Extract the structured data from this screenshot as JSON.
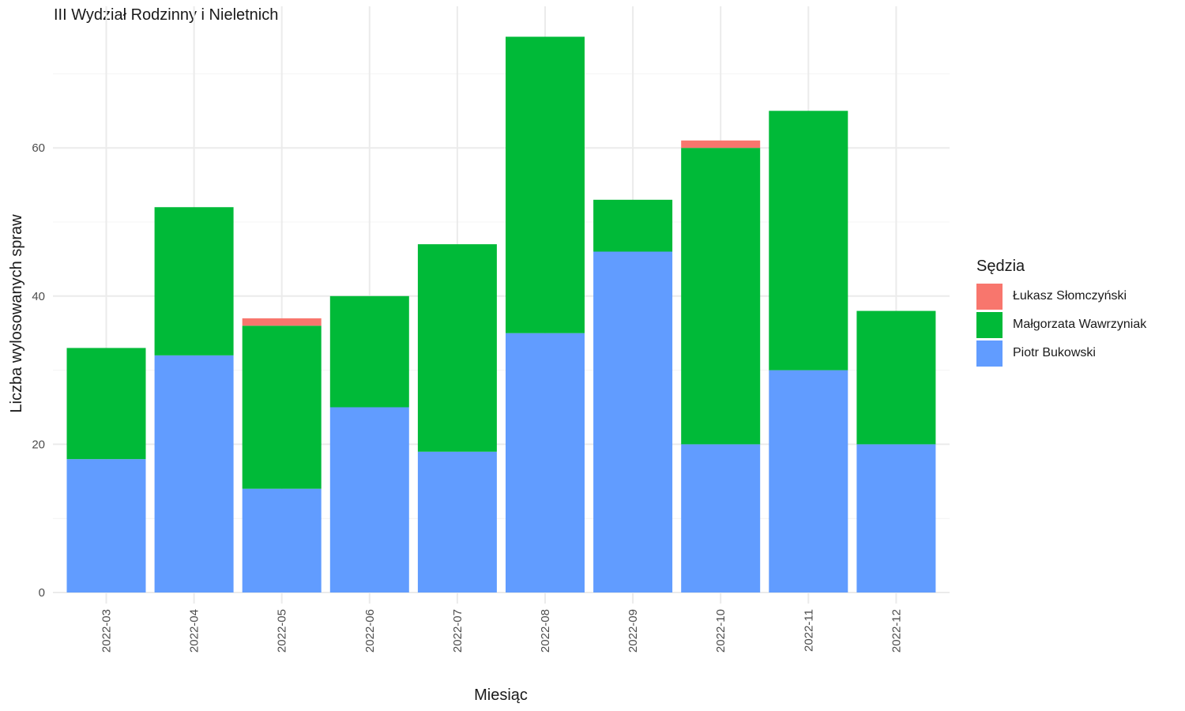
{
  "chart_data": {
    "type": "bar",
    "stacked": true,
    "title": "III Wydział Rodzinny i Nieletnich",
    "xlabel": "Miesiąc",
    "ylabel": "Liczba wylosowanych spraw",
    "ylim": [
      0,
      75
    ],
    "yticks": [
      0,
      20,
      40,
      60
    ],
    "grid": true,
    "legend": {
      "title": "Sędzia",
      "position": "right"
    },
    "categories": [
      "2022-03",
      "2022-04",
      "2022-05",
      "2022-06",
      "2022-07",
      "2022-08",
      "2022-09",
      "2022-10",
      "2022-11",
      "2022-12"
    ],
    "series": [
      {
        "name": "Łukasz Słomczyński",
        "color": "#F8766D",
        "values": [
          0,
          0,
          1,
          0,
          0,
          0,
          0,
          1,
          0,
          0
        ]
      },
      {
        "name": "Małgorzata Wawrzyniak",
        "color": "#00BA38",
        "values": [
          15,
          20,
          22,
          15,
          28,
          40,
          7,
          40,
          35,
          18
        ]
      },
      {
        "name": "Piotr Bukowski",
        "color": "#619CFF",
        "values": [
          18,
          32,
          14,
          25,
          19,
          35,
          46,
          20,
          30,
          20
        ]
      }
    ]
  }
}
